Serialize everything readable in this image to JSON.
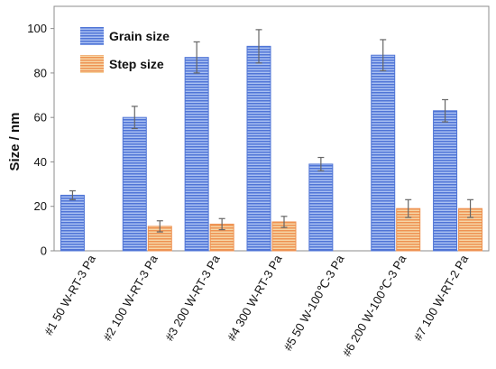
{
  "chart_data": {
    "type": "bar",
    "title": "",
    "xlabel": "",
    "ylabel": "Size / nm",
    "ylim": [
      0,
      110
    ],
    "yticks": [
      0,
      20,
      40,
      60,
      80,
      100
    ],
    "grid": false,
    "legend_position": "top-left",
    "categories": [
      "#1 50 W-RT-3 Pa",
      "#2 100 W-RT-3 Pa",
      "#3 200 W-RT-3 Pa",
      "#4 300 W-RT-3 Pa",
      "#5 50 W-100℃-3 Pa",
      "#6 200 W-100℃-3 Pa",
      "#7 100 W-RT-2 Pa"
    ],
    "series": [
      {
        "name": "Grain size",
        "color": "#4f74d6",
        "stripe_color": "#a9c0f2",
        "values": [
          25,
          60,
          87,
          92,
          39,
          88,
          63
        ],
        "errors": [
          2,
          5,
          7,
          7.5,
          3,
          7,
          5
        ]
      },
      {
        "name": "Step size",
        "color": "#ee9252",
        "stripe_color": "#f6d6a6",
        "values": [
          null,
          11,
          12,
          13,
          null,
          19,
          19
        ],
        "errors": [
          null,
          2.5,
          2.5,
          2.5,
          null,
          4,
          4
        ]
      }
    ]
  }
}
